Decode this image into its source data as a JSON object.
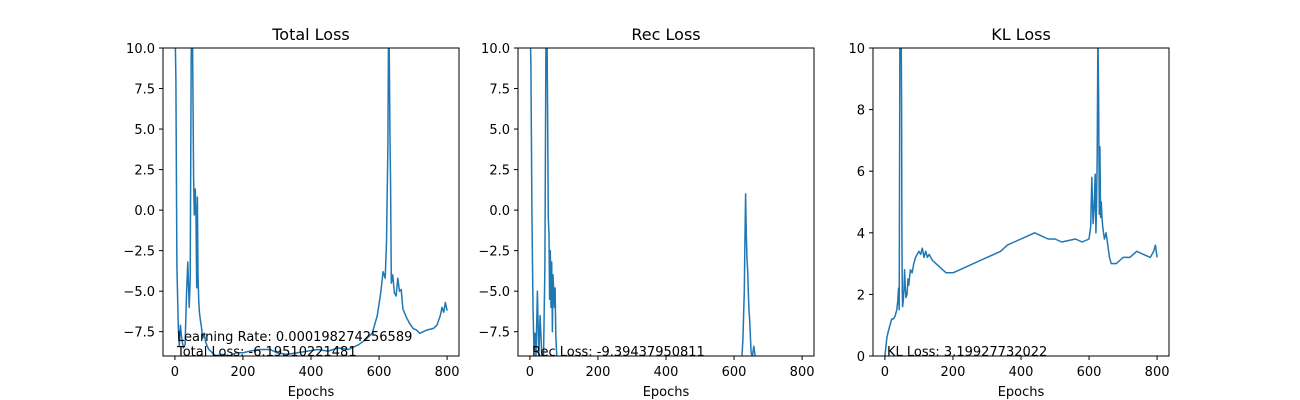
{
  "figure": {
    "background": "#ffffff",
    "line_color": "#1f77b4"
  },
  "chart_data": [
    {
      "type": "line",
      "title": "Total Loss",
      "xlabel": "Epochs",
      "ylabel": "",
      "xlim": [
        -35,
        835
      ],
      "ylim": [
        -9.0,
        10.0
      ],
      "xticks": [
        0,
        200,
        400,
        600,
        800
      ],
      "xtick_labels": [
        "0",
        "200",
        "400",
        "600",
        "800"
      ],
      "yticks": [
        -7.5,
        -5.0,
        -2.5,
        0.0,
        2.5,
        5.0,
        7.5,
        10.0
      ],
      "ytick_labels": [
        "−7.5",
        "−5.0",
        "−2.5",
        "0.0",
        "2.5",
        "5.0",
        "7.5",
        "10.0"
      ],
      "grid": false,
      "annotations": [
        "Learning Rate: 0.000198274256589",
        "Total Loss: -6.19510221481"
      ],
      "series": [
        {
          "x": [
            0,
            3,
            6,
            10,
            13,
            16,
            20,
            25,
            30,
            34,
            38,
            42,
            45,
            48,
            50,
            52,
            55,
            57,
            60,
            62,
            64,
            66,
            68,
            70,
            72,
            75,
            78,
            82,
            86,
            90,
            95,
            100,
            110,
            120,
            140,
            160,
            180,
            200,
            220,
            250,
            280,
            300,
            330,
            360,
            390,
            420,
            450,
            480,
            510,
            540,
            560,
            580,
            595,
            605,
            612,
            618,
            622,
            626,
            628,
            630,
            632,
            634,
            636,
            640,
            645,
            650,
            655,
            660,
            665,
            670,
            680,
            690,
            700,
            710,
            720,
            740,
            760,
            770,
            780,
            785,
            790,
            795,
            800
          ],
          "y": [
            12,
            8,
            -3.5,
            -7.2,
            -8.4,
            -7.1,
            -7.9,
            -8.5,
            -8.3,
            -5.2,
            -3.2,
            -6.0,
            -4.3,
            9.5,
            12,
            10,
            2.0,
            -0.3,
            1.3,
            -0.5,
            -4.8,
            0.8,
            -4.0,
            -5.5,
            -6.3,
            -6.8,
            -7.2,
            -7.9,
            -7.6,
            -8.1,
            -8.4,
            -8.6,
            -8.8,
            -9.0,
            -8.9,
            -9.0,
            -8.8,
            -8.8,
            -8.7,
            -8.6,
            -8.6,
            -8.8,
            -8.9,
            -8.8,
            -8.7,
            -8.6,
            -8.7,
            -8.5,
            -8.6,
            -8.3,
            -8.0,
            -7.6,
            -6.5,
            -5.1,
            -3.8,
            -4.2,
            -2.0,
            4.0,
            12,
            9.5,
            5.0,
            1.5,
            -4.5,
            -4.0,
            -5.1,
            -5.3,
            -4.2,
            -5.0,
            -4.9,
            -6.1,
            -6.6,
            -7.0,
            -7.3,
            -7.4,
            -7.6,
            -7.4,
            -7.3,
            -7.1,
            -6.5,
            -6.0,
            -6.3,
            -5.7,
            -6.2
          ]
        }
      ]
    },
    {
      "type": "line",
      "title": "Rec Loss",
      "xlabel": "Epochs",
      "ylabel": "",
      "xlim": [
        -35,
        835
      ],
      "ylim": [
        -9.0,
        10.0
      ],
      "xticks": [
        0,
        200,
        400,
        600,
        800
      ],
      "xtick_labels": [
        "0",
        "200",
        "400",
        "600",
        "800"
      ],
      "yticks": [
        -7.5,
        -5.0,
        -2.5,
        0.0,
        2.5,
        5.0,
        7.5,
        10.0
      ],
      "ytick_labels": [
        "−7.5",
        "−5.0",
        "−2.5",
        "0.0",
        "2.5",
        "5.0",
        "7.5",
        "10.0"
      ],
      "grid": false,
      "annotations": [
        "Rec Loss: -9.39437950811"
      ],
      "series": [
        {
          "x": [
            0,
            3,
            6,
            9,
            12,
            15,
            18,
            22,
            26,
            30,
            35,
            40,
            44,
            47,
            50,
            52,
            54,
            56,
            58,
            60,
            62,
            64,
            66,
            68,
            70,
            72,
            74,
            76,
            80,
            90,
            100,
            150,
            200,
            300,
            400,
            500,
            560,
            600,
            618,
            622,
            626,
            630,
            632,
            634,
            636,
            638,
            640,
            642,
            644,
            646,
            648,
            650,
            654,
            658,
            662,
            666,
            670,
            680,
            700,
            750,
            800
          ],
          "y": [
            12,
            9,
            0,
            -6.0,
            -8.7,
            -7.6,
            -9.0,
            -5.0,
            -9.0,
            -6.5,
            -9.0,
            -9.0,
            -3.5,
            10,
            12,
            6.0,
            -0.5,
            -1.5,
            -5.5,
            -2.5,
            -6.0,
            -3.2,
            -7.5,
            -4.0,
            -5.0,
            -6.0,
            -4.8,
            -7.7,
            -9.5,
            -10,
            -10,
            -10,
            -10,
            -10,
            -10,
            -10,
            -10,
            -10,
            -10,
            -9.5,
            -8.0,
            -5.0,
            -2.0,
            1.0,
            -1.5,
            -3.0,
            -3.8,
            -5.0,
            -6.2,
            -6.8,
            -7.8,
            -8.8,
            -9.0,
            -8.4,
            -9.0,
            -9.5,
            -10,
            -10,
            -10,
            -10,
            -10
          ]
        }
      ]
    },
    {
      "type": "line",
      "title": "KL Loss",
      "xlabel": "Epochs",
      "ylabel": "",
      "xlim": [
        -35,
        835
      ],
      "ylim": [
        0,
        10
      ],
      "xticks": [
        0,
        200,
        400,
        600,
        800
      ],
      "xtick_labels": [
        "0",
        "200",
        "400",
        "600",
        "800"
      ],
      "yticks": [
        0,
        2,
        4,
        6,
        8,
        10
      ],
      "ytick_labels": [
        "0",
        "2",
        "4",
        "6",
        "8",
        "10"
      ],
      "grid": false,
      "annotations": [
        "KL Loss: 3.19927732022"
      ],
      "series": [
        {
          "x": [
            0,
            3,
            6,
            10,
            15,
            20,
            25,
            30,
            35,
            38,
            40,
            42,
            44,
            45,
            46,
            47,
            48,
            49,
            50,
            51,
            52,
            54,
            56,
            58,
            60,
            62,
            65,
            68,
            70,
            75,
            80,
            85,
            90,
            95,
            100,
            105,
            110,
            115,
            120,
            125,
            130,
            140,
            150,
            160,
            180,
            200,
            220,
            240,
            260,
            280,
            300,
            320,
            340,
            360,
            380,
            400,
            420,
            440,
            460,
            480,
            500,
            520,
            540,
            560,
            580,
            600,
            605,
            608,
            612,
            615,
            618,
            620,
            622,
            624,
            626,
            628,
            630,
            632,
            634,
            636,
            638,
            640,
            645,
            650,
            655,
            660,
            665,
            670,
            680,
            690,
            700,
            720,
            740,
            760,
            780,
            790,
            795,
            800
          ],
          "y": [
            0,
            0.3,
            0.6,
            0.8,
            1.0,
            1.2,
            1.2,
            1.3,
            1.5,
            1.8,
            2.2,
            1.5,
            10.5,
            10.5,
            10.5,
            10.5,
            10.5,
            8.0,
            4.0,
            2.0,
            1.6,
            1.8,
            2.2,
            2.8,
            2.2,
            1.9,
            2.0,
            2.5,
            2.3,
            2.8,
            2.7,
            3.0,
            3.2,
            3.3,
            3.4,
            3.3,
            3.5,
            3.2,
            3.4,
            3.2,
            3.3,
            3.1,
            3.0,
            2.9,
            2.7,
            2.7,
            2.8,
            2.9,
            3.0,
            3.1,
            3.2,
            3.3,
            3.4,
            3.6,
            3.7,
            3.8,
            3.9,
            4.0,
            3.9,
            3.8,
            3.8,
            3.7,
            3.75,
            3.8,
            3.7,
            3.8,
            4.2,
            5.8,
            4.3,
            4.8,
            5.9,
            4.0,
            4.8,
            6.5,
            10.5,
            8.5,
            4.6,
            6.8,
            4.5,
            5.0,
            4.5,
            4.2,
            3.8,
            4.0,
            3.6,
            3.2,
            3.0,
            3.0,
            3.0,
            3.1,
            3.2,
            3.2,
            3.4,
            3.3,
            3.2,
            3.4,
            3.6,
            3.2
          ]
        }
      ]
    }
  ]
}
